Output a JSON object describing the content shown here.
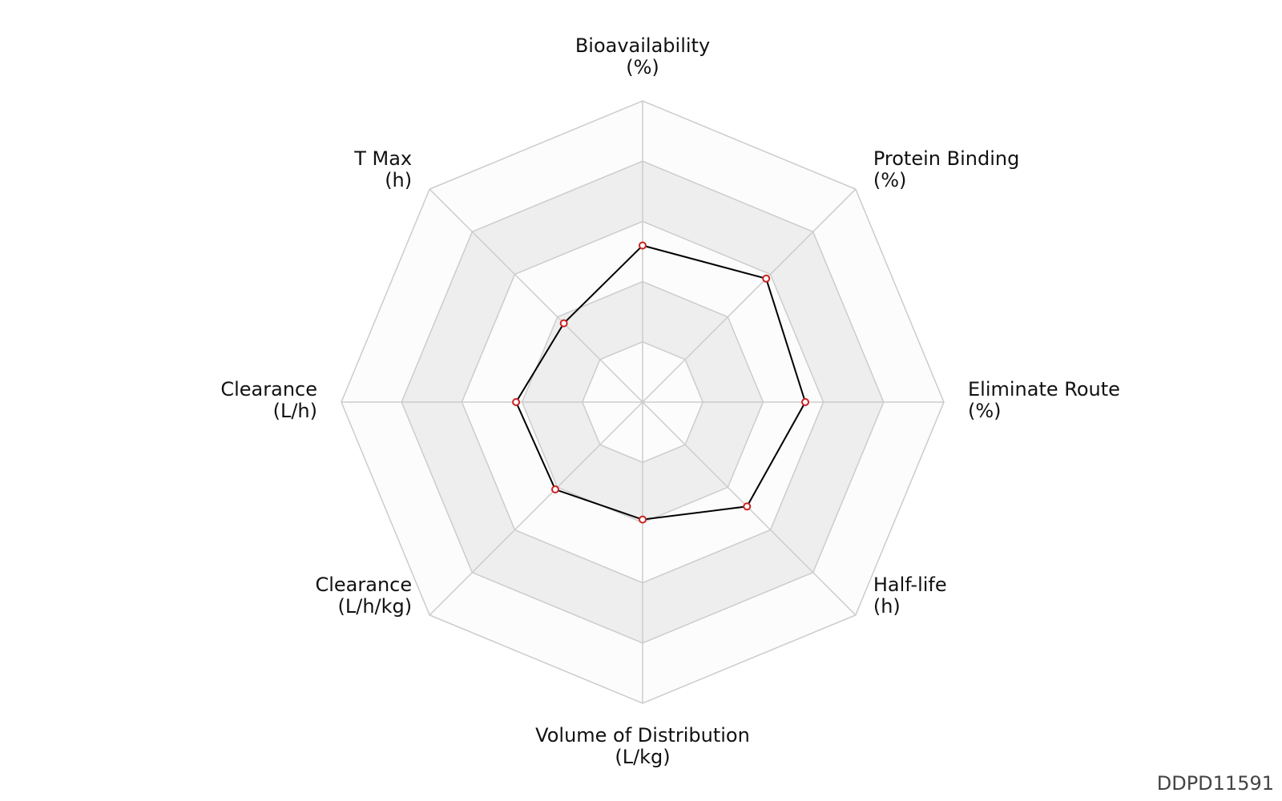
{
  "chart_data": {
    "type": "radar",
    "axes": [
      {
        "name": "Bioavailability",
        "unit": "(%)"
      },
      {
        "name": "Protein Binding",
        "unit": "(%)"
      },
      {
        "name": "Eliminate Route",
        "unit": "(%)"
      },
      {
        "name": "Half-life",
        "unit": "(h)"
      },
      {
        "name": "Volume of Distribution",
        "unit": "(L/kg)"
      },
      {
        "name": "Clearance",
        "unit": "(L/h/kg)"
      },
      {
        "name": "Clearance",
        "unit": "(L/h)"
      },
      {
        "name": "T Max",
        "unit": "(h)"
      }
    ],
    "scale": [
      0,
      1
    ],
    "rings": 5,
    "series": [
      {
        "values": [
          0.52,
          0.58,
          0.54,
          0.49,
          0.39,
          0.41,
          0.42,
          0.37
        ]
      }
    ],
    "grid": true,
    "colors": {
      "line": "#000000",
      "marker_stroke": "#cc2222",
      "marker_fill": "#ffffff",
      "band_light": "#fcfcfc",
      "band_dark": "#eeeeee",
      "grid": "#cccccc"
    }
  },
  "watermark": "DDPD11591"
}
